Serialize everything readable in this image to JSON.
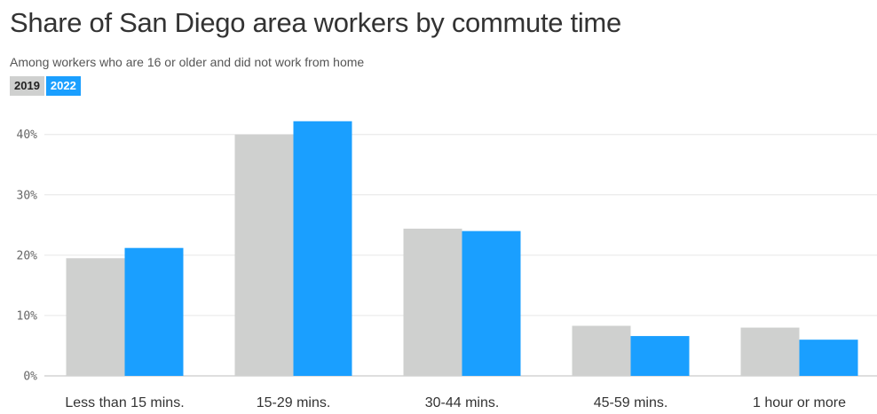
{
  "chart_data": {
    "type": "bar",
    "title": "Share of San Diego area workers by commute time",
    "subtitle": "Among workers who are 16 or older and did not work from home",
    "categories": [
      "Less than 15 mins.",
      "15-29 mins.",
      "30-44 mins.",
      "45-59 mins.",
      "1 hour or more"
    ],
    "series": [
      {
        "name": "2019",
        "color": "#cfd0cf",
        "values": [
          19.5,
          40.0,
          24.4,
          8.3,
          8.0
        ]
      },
      {
        "name": "2022",
        "color": "#1a9fff",
        "values": [
          21.2,
          42.2,
          24.0,
          6.6,
          6.0
        ]
      }
    ],
    "y_ticks": [
      0,
      10,
      20,
      30,
      40
    ],
    "y_tick_labels": [
      "0%",
      "10%",
      "20%",
      "30%",
      "40%"
    ],
    "ylim": [
      0,
      44
    ],
    "xlabel": "",
    "ylabel": "",
    "grid": true,
    "legend_position": "top-left"
  }
}
